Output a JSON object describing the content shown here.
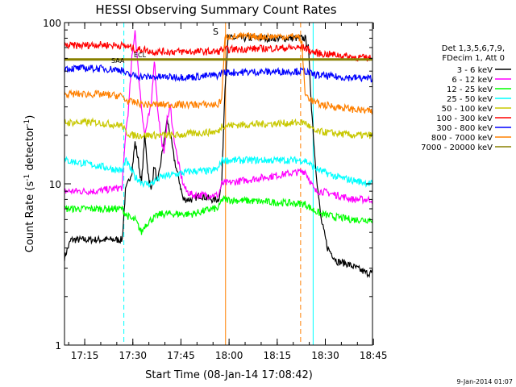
{
  "chart_data": {
    "type": "line",
    "title": "HESSI Observing Summary Count Rates",
    "xlabel": "Start Time (08-Jan-14 17:08:42)",
    "ylabel": "Count Rate (s⁻¹ detector⁻¹)",
    "ylabel_parts": [
      "Count Rate (s",
      "-1",
      " detector",
      "-1",
      ")"
    ],
    "x_range_minutes": [
      0,
      96
    ],
    "x_ticks": [
      {
        "label": "17:15",
        "minute": 6.3
      },
      {
        "label": "17:30",
        "minute": 21.3
      },
      {
        "label": "17:45",
        "minute": 36.3
      },
      {
        "label": "18:00",
        "minute": 51.3
      },
      {
        "label": "18:15",
        "minute": 66.3
      },
      {
        "label": "18:30",
        "minute": 81.3
      },
      {
        "label": "18:45",
        "minute": 96.3
      }
    ],
    "y_scale": "log",
    "y_range": [
      1,
      100
    ],
    "y_tick_labels": [
      "1",
      "10",
      "100"
    ],
    "legend_header": [
      "Det 1,3,5,6,7,9,",
      "FDecim 1, Att 0"
    ],
    "legend_position": "right",
    "series": [
      {
        "name": "3 - 6 keV",
        "color": "#000000",
        "points": [
          [
            0,
            3.5
          ],
          [
            2,
            4.5
          ],
          [
            10,
            4.5
          ],
          [
            18,
            4.5
          ],
          [
            19,
            9
          ],
          [
            21,
            12
          ],
          [
            22,
            18
          ],
          [
            23,
            14
          ],
          [
            24,
            10
          ],
          [
            25,
            20
          ],
          [
            26,
            12
          ],
          [
            27,
            9
          ],
          [
            28,
            13
          ],
          [
            29,
            10
          ],
          [
            32,
            25
          ],
          [
            33,
            20
          ],
          [
            34,
            15
          ],
          [
            35,
            12
          ],
          [
            36,
            10
          ],
          [
            37,
            8
          ],
          [
            40,
            8
          ],
          [
            42,
            8.5
          ],
          [
            46,
            8
          ],
          [
            48,
            8
          ],
          [
            49,
            10
          ],
          [
            50,
            40
          ],
          [
            51,
            80
          ],
          [
            56,
            80
          ],
          [
            65,
            80
          ],
          [
            75,
            80
          ],
          [
            76,
            70
          ],
          [
            77,
            30
          ],
          [
            78,
            15
          ],
          [
            79,
            9
          ],
          [
            80,
            6
          ],
          [
            82,
            4
          ],
          [
            85,
            3.3
          ],
          [
            88,
            3.2
          ],
          [
            91,
            3
          ],
          [
            94,
            2.8
          ],
          [
            96,
            2.8
          ]
        ]
      },
      {
        "name": "6 - 12 keV",
        "color": "#ff00ff",
        "points": [
          [
            0,
            9
          ],
          [
            5,
            9
          ],
          [
            10,
            9
          ],
          [
            18,
            9.5
          ],
          [
            19,
            20
          ],
          [
            20,
            30
          ],
          [
            21,
            60
          ],
          [
            22,
            90
          ],
          [
            23,
            50
          ],
          [
            24,
            30
          ],
          [
            25,
            20
          ],
          [
            26,
            25
          ],
          [
            27,
            30
          ],
          [
            28,
            60
          ],
          [
            29,
            30
          ],
          [
            30,
            20
          ],
          [
            31,
            15
          ],
          [
            32,
            25
          ],
          [
            33,
            30
          ],
          [
            34,
            20
          ],
          [
            35,
            15
          ],
          [
            36,
            12
          ],
          [
            37,
            10
          ],
          [
            38,
            9
          ],
          [
            40,
            8.5
          ],
          [
            42,
            8.5
          ],
          [
            46,
            8.5
          ],
          [
            48,
            8.5
          ],
          [
            49,
            10
          ],
          [
            75,
            12
          ],
          [
            77,
            10
          ],
          [
            78,
            9
          ],
          [
            80,
            9
          ],
          [
            85,
            8.5
          ],
          [
            90,
            8
          ],
          [
            96,
            8
          ]
        ]
      },
      {
        "name": "12 - 25 keV",
        "color": "#00ff00",
        "points": [
          [
            0,
            7
          ],
          [
            5,
            7
          ],
          [
            10,
            7
          ],
          [
            18,
            7
          ],
          [
            19,
            6.5
          ],
          [
            21,
            6
          ],
          [
            22,
            6
          ],
          [
            24,
            5
          ],
          [
            25,
            5.5
          ],
          [
            27,
            6
          ],
          [
            30,
            6.5
          ],
          [
            35,
            6.5
          ],
          [
            40,
            6.5
          ],
          [
            46,
            7
          ],
          [
            48,
            7
          ],
          [
            49,
            8
          ],
          [
            75,
            7.5
          ],
          [
            77,
            7
          ],
          [
            78,
            6.8
          ],
          [
            80,
            6.5
          ],
          [
            85,
            6.2
          ],
          [
            90,
            6
          ],
          [
            96,
            6
          ]
        ]
      },
      {
        "name": "25 - 50 keV",
        "color": "#00ffff",
        "points": [
          [
            0,
            14
          ],
          [
            5,
            13.5
          ],
          [
            10,
            13
          ],
          [
            18,
            12
          ],
          [
            19,
            14
          ],
          [
            21,
            12
          ],
          [
            22,
            11
          ],
          [
            25,
            10
          ],
          [
            27,
            10
          ],
          [
            30,
            11
          ],
          [
            35,
            11.5
          ],
          [
            40,
            12
          ],
          [
            46,
            12
          ],
          [
            48,
            12.5
          ],
          [
            49,
            14
          ],
          [
            75,
            14
          ],
          [
            77,
            13
          ],
          [
            78,
            12.5
          ],
          [
            80,
            12
          ],
          [
            85,
            11
          ],
          [
            90,
            10.5
          ],
          [
            96,
            10
          ]
        ]
      },
      {
        "name": "50 - 100 keV",
        "color": "#c8c800",
        "points": [
          [
            0,
            24
          ],
          [
            5,
            24
          ],
          [
            10,
            24
          ],
          [
            18,
            23
          ],
          [
            19,
            21
          ],
          [
            21,
            20
          ],
          [
            22,
            20
          ],
          [
            25,
            20
          ],
          [
            27,
            20
          ],
          [
            30,
            20
          ],
          [
            35,
            20
          ],
          [
            40,
            20.5
          ],
          [
            46,
            21
          ],
          [
            48,
            21
          ],
          [
            49,
            23
          ],
          [
            75,
            24
          ],
          [
            77,
            22
          ],
          [
            78,
            21
          ],
          [
            80,
            21
          ],
          [
            85,
            20.5
          ],
          [
            90,
            20
          ],
          [
            96,
            20
          ]
        ]
      },
      {
        "name": "100 - 300 keV",
        "color": "#ff0000",
        "points": [
          [
            0,
            72
          ],
          [
            5,
            72
          ],
          [
            10,
            73
          ],
          [
            18,
            72
          ],
          [
            21,
            70
          ],
          [
            22,
            68
          ],
          [
            25,
            68
          ],
          [
            27,
            66
          ],
          [
            30,
            66
          ],
          [
            35,
            66
          ],
          [
            40,
            66
          ],
          [
            46,
            66
          ],
          [
            48,
            66
          ],
          [
            49,
            68
          ],
          [
            75,
            70
          ],
          [
            77,
            66
          ],
          [
            78,
            65
          ],
          [
            80,
            64
          ],
          [
            85,
            63
          ],
          [
            90,
            61
          ],
          [
            96,
            60
          ]
        ]
      },
      {
        "name": "300 - 800 keV",
        "color": "#0000ff",
        "points": [
          [
            0,
            52
          ],
          [
            5,
            52
          ],
          [
            10,
            52
          ],
          [
            18,
            51
          ],
          [
            19,
            48
          ],
          [
            21,
            47
          ],
          [
            22,
            47
          ],
          [
            25,
            46
          ],
          [
            27,
            46
          ],
          [
            30,
            46
          ],
          [
            35,
            46
          ],
          [
            40,
            46
          ],
          [
            46,
            47
          ],
          [
            48,
            47
          ],
          [
            49,
            49
          ],
          [
            75,
            50
          ],
          [
            77,
            48
          ],
          [
            78,
            47.5
          ],
          [
            80,
            47
          ],
          [
            85,
            46
          ],
          [
            90,
            45.5
          ],
          [
            96,
            45
          ]
        ]
      },
      {
        "name": "800 - 7000 keV",
        "color": "#ff8000",
        "points": [
          [
            0,
            36
          ],
          [
            5,
            36
          ],
          [
            10,
            36
          ],
          [
            18,
            35
          ],
          [
            19,
            33
          ],
          [
            21,
            32
          ],
          [
            22,
            32
          ],
          [
            25,
            31
          ],
          [
            27,
            31
          ],
          [
            30,
            31
          ],
          [
            35,
            31
          ],
          [
            40,
            31
          ],
          [
            46,
            31
          ],
          [
            48,
            31
          ],
          [
            49,
            34
          ],
          [
            50,
            80
          ],
          [
            51,
            82
          ],
          [
            56,
            82
          ],
          [
            65,
            82
          ],
          [
            73,
            82
          ],
          [
            74,
            74
          ],
          [
            75,
            36
          ],
          [
            77,
            33
          ],
          [
            78,
            32
          ],
          [
            80,
            31
          ],
          [
            85,
            30
          ],
          [
            90,
            29
          ],
          [
            96,
            28
          ]
        ]
      },
      {
        "name": "7000 - 20000 keV",
        "color": "#888000",
        "points": [
          [
            0,
            59
          ],
          [
            10,
            59
          ],
          [
            20,
            59
          ],
          [
            30,
            59
          ],
          [
            40,
            59
          ],
          [
            49,
            59
          ],
          [
            75,
            59
          ],
          [
            85,
            59
          ],
          [
            96,
            59
          ]
        ]
      }
    ],
    "vertical_markers": [
      {
        "minute": 18.5,
        "color": "#00ffff",
        "style": "dashed"
      },
      {
        "minute": 77.5,
        "color": "#00ffff",
        "style": "solid"
      },
      {
        "minute": 96.0,
        "color": "#00ffff",
        "style": "dashed"
      },
      {
        "minute": 50.2,
        "color": "#ff8000",
        "style": "solid"
      },
      {
        "minute": 73.6,
        "color": "#ff8000",
        "style": "dashed"
      }
    ],
    "annotations": [
      {
        "text": "S",
        "color": "#ff8000"
      },
      {
        "text": "SAA",
        "color": "#007700"
      },
      {
        "text": "ECL",
        "color": "#007700"
      }
    ],
    "footer": "9-Jan-2014 01:07"
  }
}
